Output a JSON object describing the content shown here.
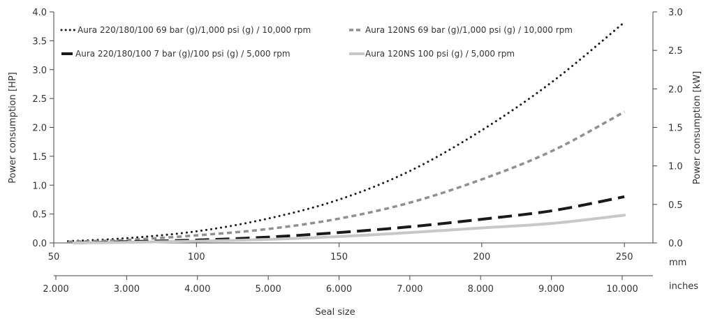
{
  "chart_data": {
    "type": "line",
    "xlabel": "Seal size",
    "x_unit_primary": "mm",
    "x_unit_secondary": "inches",
    "ylabel_left": "Power consumption [HP]",
    "ylabel_right": "Power consumption [kW]",
    "xlim_mm": [
      50,
      260
    ],
    "ylim_left": [
      0,
      4.0
    ],
    "ylim_right": [
      0,
      3.0
    ],
    "x_ticks_mm": [
      50,
      100,
      150,
      200,
      250
    ],
    "x_ticks_mm_labels": [
      "50",
      "100",
      "150",
      "200",
      "250"
    ],
    "x_ticks_in": [
      2,
      3,
      4,
      5,
      6,
      7,
      8,
      9,
      10
    ],
    "x_ticks_in_labels": [
      "2.000",
      "3.000",
      "4.000",
      "5.000",
      "6.000",
      "7.000",
      "8.000",
      "9.000",
      "10.000"
    ],
    "y_ticks_left": [
      0,
      0.5,
      1.0,
      1.5,
      2.0,
      2.5,
      3.0,
      3.5,
      4.0
    ],
    "y_ticks_left_labels": [
      "0.0",
      "0.5",
      "1.0",
      "1.5",
      "2.0",
      "2.5",
      "3.0",
      "3.5",
      "4.0"
    ],
    "y_ticks_right": [
      0,
      0.5,
      1.0,
      1.5,
      2.0,
      2.5,
      3.0
    ],
    "y_ticks_right_labels": [
      "0.0",
      "0.5",
      "1.0",
      "1.5",
      "2.0",
      "2.5",
      "3.0"
    ],
    "grid": false,
    "legend_position": "top",
    "series": [
      {
        "name": "Aura 220/180/100 69 bar (g)/1,000 psi (g) / 10,000 rpm",
        "style": "dotted",
        "color": "#1a1a1a",
        "x": [
          55,
          75,
          100,
          125,
          150,
          175,
          200,
          225,
          250
        ],
        "y": [
          0.03,
          0.08,
          0.2,
          0.42,
          0.75,
          1.25,
          1.95,
          2.8,
          3.82
        ]
      },
      {
        "name": "Aura 120NS 69 bar (g)/1,000 psi (g) / 10,000 rpm",
        "style": "short-dash",
        "color": "#909090",
        "x": [
          55,
          75,
          100,
          125,
          150,
          175,
          200,
          225,
          250
        ],
        "y": [
          0.02,
          0.05,
          0.13,
          0.24,
          0.42,
          0.7,
          1.1,
          1.6,
          2.27
        ]
      },
      {
        "name": "Aura 220/180/100 7 bar (g)/100 psi (g) / 5,000 rpm",
        "style": "long-dash",
        "color": "#1a1a1a",
        "x": [
          57,
          75,
          100,
          125,
          150,
          175,
          200,
          225,
          250
        ],
        "y": [
          0.0,
          0.02,
          0.05,
          0.1,
          0.18,
          0.28,
          0.41,
          0.56,
          0.8
        ]
      },
      {
        "name": "Aura 120NS 100 psi (g) / 5,000 rpm",
        "style": "solid",
        "color": "#c8c8c8",
        "x": [
          57,
          75,
          100,
          125,
          150,
          175,
          200,
          225,
          250
        ],
        "y": [
          0.0,
          0.01,
          0.03,
          0.06,
          0.11,
          0.18,
          0.26,
          0.34,
          0.48
        ]
      }
    ]
  }
}
